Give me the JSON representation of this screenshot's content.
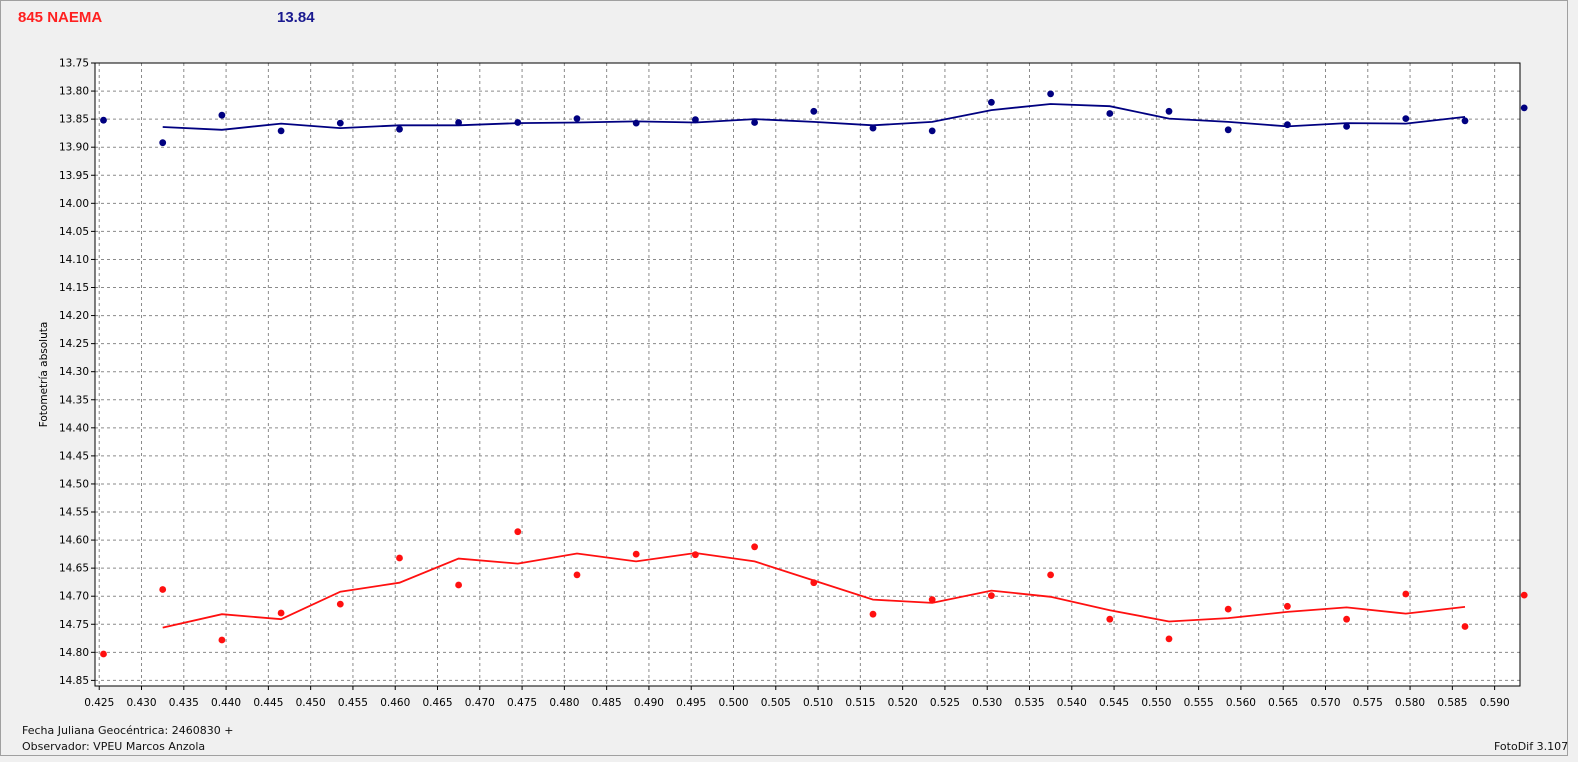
{
  "header": {
    "object_name": "845 NAEMA",
    "magnitude_value": "13.84"
  },
  "footer": {
    "jd_label": "Fecha Juliana Geocéntrica:",
    "jd_value": "2460830 +",
    "observer_label": "Observador:",
    "observer_value": "VPEU Marcos Anzola",
    "version": "FotoDif 3.107"
  },
  "colors": {
    "series1": "#000080",
    "series2": "#ff1010",
    "grid": "#8a8a8a"
  },
  "chart_data": {
    "type": "scatter",
    "ylabel": "Fotometría absoluta",
    "xlabel": "",
    "xlim": [
      0.4245,
      0.593
    ],
    "ylim": [
      13.75,
      14.86
    ],
    "y_inverted": true,
    "grid": true,
    "xticks": [
      0.425,
      0.43,
      0.435,
      0.44,
      0.445,
      0.45,
      0.455,
      0.46,
      0.465,
      0.47,
      0.475,
      0.48,
      0.485,
      0.49,
      0.495,
      0.5,
      0.505,
      0.51,
      0.515,
      0.52,
      0.525,
      0.53,
      0.535,
      0.54,
      0.545,
      0.55,
      0.555,
      0.56,
      0.565,
      0.57,
      0.575,
      0.58,
      0.585,
      0.59
    ],
    "yticks": [
      13.75,
      13.8,
      13.85,
      13.9,
      13.95,
      14.0,
      14.05,
      14.1,
      14.15,
      14.2,
      14.25,
      14.3,
      14.35,
      14.4,
      14.45,
      14.5,
      14.55,
      14.6,
      14.65,
      14.7,
      14.75,
      14.8,
      14.85
    ],
    "series": [
      {
        "color": "#000080",
        "points": [
          [
            0.4255,
            13.852
          ],
          [
            0.4325,
            13.892
          ],
          [
            0.4395,
            13.843
          ],
          [
            0.4465,
            13.871
          ],
          [
            0.4535,
            13.857
          ],
          [
            0.4605,
            13.868
          ],
          [
            0.4675,
            13.856
          ],
          [
            0.4745,
            13.856
          ],
          [
            0.4815,
            13.849
          ],
          [
            0.4885,
            13.857
          ],
          [
            0.4955,
            13.851
          ],
          [
            0.5025,
            13.856
          ],
          [
            0.5095,
            13.836
          ],
          [
            0.5165,
            13.866
          ],
          [
            0.5235,
            13.871
          ],
          [
            0.5305,
            13.82
          ],
          [
            0.5375,
            13.805
          ],
          [
            0.5445,
            13.84
          ],
          [
            0.5515,
            13.836
          ],
          [
            0.5585,
            13.869
          ],
          [
            0.5655,
            13.86
          ],
          [
            0.5725,
            13.863
          ],
          [
            0.5795,
            13.849
          ],
          [
            0.5865,
            13.853
          ],
          [
            0.5935,
            13.83
          ]
        ],
        "trend": [
          [
            0.4325,
            13.864
          ],
          [
            0.4395,
            13.869
          ],
          [
            0.4465,
            13.858
          ],
          [
            0.4535,
            13.866
          ],
          [
            0.4605,
            13.861
          ],
          [
            0.4675,
            13.861
          ],
          [
            0.4745,
            13.857
          ],
          [
            0.4815,
            13.856
          ],
          [
            0.4885,
            13.854
          ],
          [
            0.4955,
            13.856
          ],
          [
            0.5025,
            13.85
          ],
          [
            0.5095,
            13.855
          ],
          [
            0.5165,
            13.861
          ],
          [
            0.5235,
            13.855
          ],
          [
            0.5305,
            13.834
          ],
          [
            0.5375,
            13.823
          ],
          [
            0.5445,
            13.827
          ],
          [
            0.5515,
            13.849
          ],
          [
            0.5585,
            13.855
          ],
          [
            0.5655,
            13.863
          ],
          [
            0.5725,
            13.857
          ],
          [
            0.5795,
            13.858
          ],
          [
            0.5865,
            13.846
          ]
        ]
      },
      {
        "color": "#ff1010",
        "points": [
          [
            0.4255,
            14.803
          ],
          [
            0.4325,
            14.688
          ],
          [
            0.4395,
            14.778
          ],
          [
            0.4465,
            14.73
          ],
          [
            0.4535,
            14.714
          ],
          [
            0.4605,
            14.632
          ],
          [
            0.4675,
            14.68
          ],
          [
            0.4745,
            14.585
          ],
          [
            0.4815,
            14.662
          ],
          [
            0.4885,
            14.625
          ],
          [
            0.4955,
            14.626
          ],
          [
            0.5025,
            14.612
          ],
          [
            0.5095,
            14.676
          ],
          [
            0.5165,
            14.732
          ],
          [
            0.5235,
            14.706
          ],
          [
            0.5305,
            14.699
          ],
          [
            0.5375,
            14.662
          ],
          [
            0.5445,
            14.741
          ],
          [
            0.5515,
            14.776
          ],
          [
            0.5585,
            14.723
          ],
          [
            0.5655,
            14.718
          ],
          [
            0.5725,
            14.741
          ],
          [
            0.5795,
            14.696
          ],
          [
            0.5865,
            14.754
          ],
          [
            0.5935,
            14.698
          ]
        ],
        "trend": [
          [
            0.4325,
            14.756
          ],
          [
            0.4395,
            14.732
          ],
          [
            0.4465,
            14.741
          ],
          [
            0.4535,
            14.692
          ],
          [
            0.4605,
            14.676
          ],
          [
            0.4675,
            14.633
          ],
          [
            0.4745,
            14.642
          ],
          [
            0.4815,
            14.624
          ],
          [
            0.4885,
            14.638
          ],
          [
            0.4955,
            14.623
          ],
          [
            0.5025,
            14.638
          ],
          [
            0.5095,
            14.672
          ],
          [
            0.5165,
            14.706
          ],
          [
            0.5235,
            14.712
          ],
          [
            0.5305,
            14.69
          ],
          [
            0.5375,
            14.701
          ],
          [
            0.5445,
            14.725
          ],
          [
            0.5515,
            14.745
          ],
          [
            0.5585,
            14.739
          ],
          [
            0.5655,
            14.728
          ],
          [
            0.5725,
            14.72
          ],
          [
            0.5795,
            14.731
          ],
          [
            0.5865,
            14.719
          ]
        ]
      }
    ]
  }
}
